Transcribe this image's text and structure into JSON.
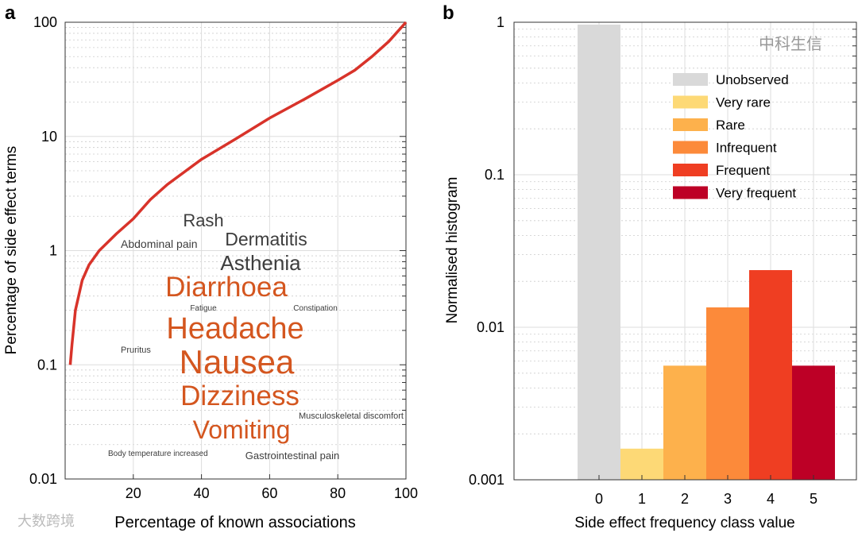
{
  "chart_data": [
    {
      "panel": "a",
      "type": "line",
      "xlabel": "Percentage of known associations",
      "ylabel": "Percentage of side effect terms",
      "xlim": [
        0,
        100
      ],
      "ylim": [
        0.01,
        100
      ],
      "yscale": "log",
      "xticks": [
        "20",
        "40",
        "60",
        "80",
        "100"
      ],
      "yticks": [
        "0.01",
        "0.1",
        "1",
        "10",
        "100"
      ],
      "grid": true,
      "line_color": "#d8332a",
      "x": [
        1.5,
        2,
        3,
        5,
        7,
        10,
        15,
        20,
        25,
        30,
        40,
        50,
        60,
        70,
        80,
        85,
        90,
        95,
        100
      ],
      "y": [
        0.1,
        0.15,
        0.3,
        0.55,
        0.75,
        1.0,
        1.4,
        1.9,
        2.8,
        3.8,
        6.3,
        9.5,
        14.5,
        21,
        31,
        38,
        50,
        68,
        100
      ],
      "word_cloud": [
        {
          "text": "Rash",
          "color": "#3d3d3d"
        },
        {
          "text": "Abdominal pain",
          "color": "#3d3d3d"
        },
        {
          "text": "Dermatitis",
          "color": "#3d3d3d"
        },
        {
          "text": "Asthenia",
          "color": "#3d3d3d"
        },
        {
          "text": "Diarrhoea",
          "color": "#d4561f"
        },
        {
          "text": "Fatigue",
          "color": "#3d3d3d"
        },
        {
          "text": "Constipation",
          "color": "#3d3d3d"
        },
        {
          "text": "Headache",
          "color": "#d4561f"
        },
        {
          "text": "Pruritus",
          "color": "#3d3d3d"
        },
        {
          "text": "Nausea",
          "color": "#d4561f"
        },
        {
          "text": "Dizziness",
          "color": "#d4561f"
        },
        {
          "text": "Musculoskeletal discomfort",
          "color": "#3d3d3d"
        },
        {
          "text": "Vomiting",
          "color": "#d4561f"
        },
        {
          "text": "Body temperature increased",
          "color": "#3d3d3d"
        },
        {
          "text": "Gastrointestinal pain",
          "color": "#3d3d3d"
        }
      ]
    },
    {
      "panel": "b",
      "type": "bar",
      "xlabel": "Side effect frequency class value",
      "ylabel": "Normalised histogram",
      "yscale": "log",
      "ylim": [
        0.001,
        1
      ],
      "yticks": [
        "0.001",
        "0.01",
        "0.1",
        "1"
      ],
      "categories": [
        "0",
        "1",
        "2",
        "3",
        "4",
        "5"
      ],
      "values": [
        0.965,
        0.0016,
        0.0056,
        0.0135,
        0.0237,
        0.0056
      ],
      "colors": [
        "#d9d9d9",
        "#fdd976",
        "#fdb14c",
        "#fc8a3a",
        "#ef3e22",
        "#bd0026"
      ],
      "legend": [
        "Unobserved",
        "Very rare",
        "Rare",
        "Infrequent",
        "Frequent",
        "Very frequent"
      ],
      "legend_position": "top-right",
      "grid": true
    }
  ],
  "panel_labels": [
    "a",
    "b"
  ],
  "watermarks": [
    "大数跨境",
    "中科生信"
  ]
}
